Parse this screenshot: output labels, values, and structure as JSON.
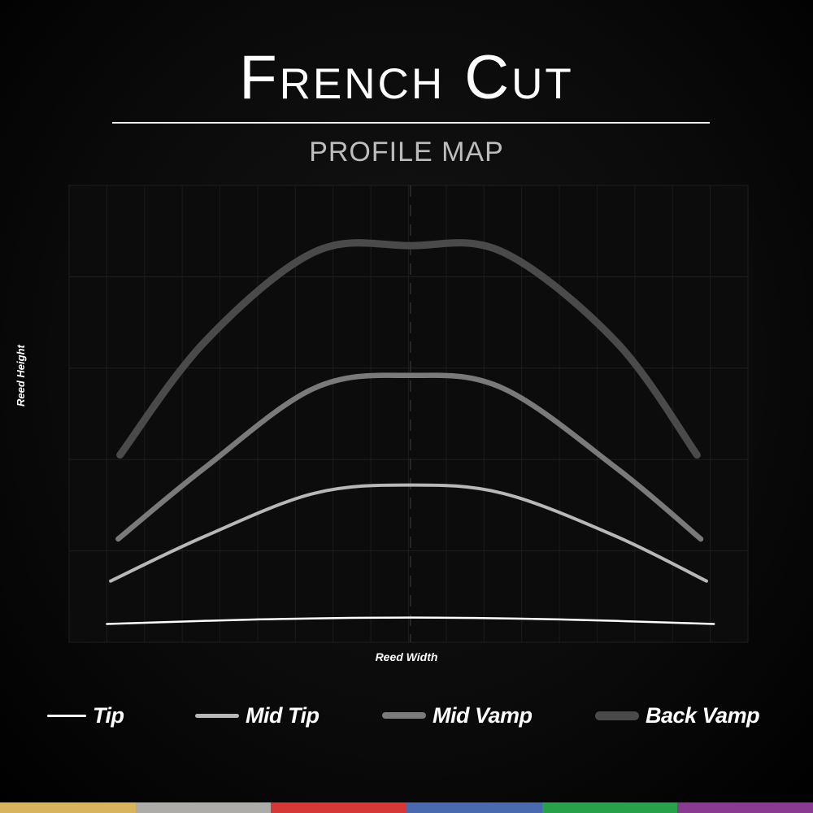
{
  "chart_data": {
    "type": "line",
    "title": "French Cut",
    "subtitle": "PROFILE MAP",
    "xlabel": "Reed Width",
    "ylabel": "Reed Height",
    "xlim": [
      0,
      18
    ],
    "ylim": [
      0,
      5
    ],
    "grid": true,
    "center_line": 9.05,
    "legend_position": "bottom",
    "series": [
      {
        "name": "Tip",
        "color": "#ffffff",
        "points": [
          [
            1.0,
            0.2
          ],
          [
            5.0,
            0.25
          ],
          [
            9.05,
            0.27
          ],
          [
            13.0,
            0.25
          ],
          [
            17.1,
            0.2
          ]
        ]
      },
      {
        "name": "Mid Tip",
        "color": "#b8b8b8",
        "points": [
          [
            1.1,
            0.67
          ],
          [
            3.6,
            1.16
          ],
          [
            6.5,
            1.63
          ],
          [
            9.05,
            1.72
          ],
          [
            11.5,
            1.63
          ],
          [
            14.5,
            1.16
          ],
          [
            16.9,
            0.67
          ]
        ]
      },
      {
        "name": "Mid Vamp",
        "color": "#7a7a7a",
        "points": [
          [
            1.3,
            1.13
          ],
          [
            3.6,
            1.91
          ],
          [
            6.5,
            2.78
          ],
          [
            9.05,
            2.92
          ],
          [
            11.5,
            2.78
          ],
          [
            14.5,
            1.91
          ],
          [
            16.75,
            1.13
          ]
        ]
      },
      {
        "name": "Back Vamp",
        "color": "#4a4a4a",
        "points": [
          [
            1.35,
            2.05
          ],
          [
            3.6,
            3.29
          ],
          [
            6.5,
            4.27
          ],
          [
            9.05,
            4.34
          ],
          [
            11.5,
            4.27
          ],
          [
            14.5,
            3.29
          ],
          [
            16.65,
            2.05
          ]
        ]
      }
    ]
  },
  "footer_colors": [
    "#d8b45f",
    "#aeaca8",
    "#d63838",
    "#4a6ab0",
    "#27a24a",
    "#8a3a90"
  ]
}
